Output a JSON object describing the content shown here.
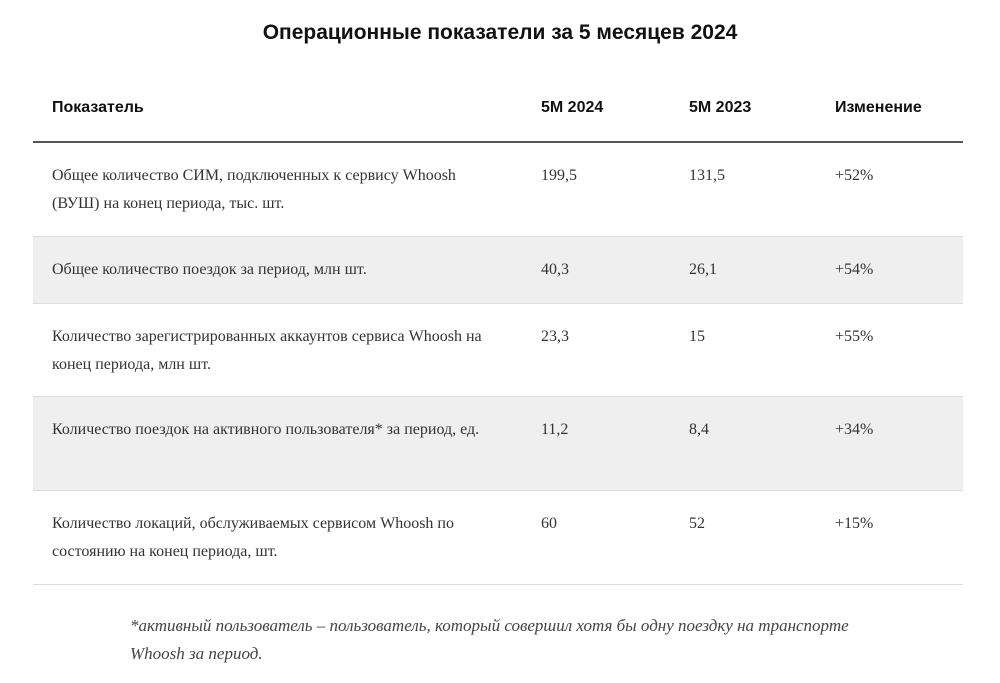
{
  "title": "Операционные показатели за 5 месяцев 2024",
  "table": {
    "headers": {
      "indicator": "Показатель",
      "col_2024": "5М 2024",
      "col_2023": "5М 2023",
      "change": "Изменение"
    },
    "rows": [
      {
        "indicator": "Общее количество СИМ, подключенных к сервису Whoosh (ВУШ) на конец периода, тыс. шт.",
        "v2024": "199,5",
        "v2023": "131,5",
        "change": "+52%"
      },
      {
        "indicator": "Общее количество поездок за период, млн шт.",
        "v2024": "40,3",
        "v2023": "26,1",
        "change": "+54%"
      },
      {
        "indicator": "Количество зарегистрированных аккаунтов сервиса Whoosh на конец периода, млн шт.",
        "v2024": "23,3",
        "v2023": "15",
        "change": "+55%"
      },
      {
        "indicator": "Количество поездок на активного пользователя* за период, ед.",
        "v2024": "11,2",
        "v2023": "8,4",
        "change": "+34%"
      },
      {
        "indicator": "Количество локаций, обслуживаемых сервисом Whoosh по состоянию на конец периода, шт.",
        "v2024": "60",
        "v2023": "52",
        "change": "+15%"
      }
    ]
  },
  "footnote": "*активный пользователь – пользователь, который совершил хотя бы одну поездку на транспорте Whoosh за период."
}
